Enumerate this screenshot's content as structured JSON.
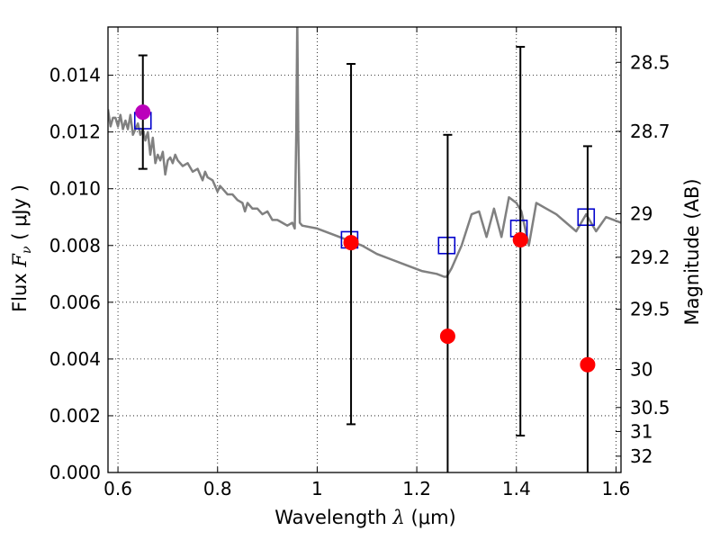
{
  "chart_data": {
    "type": "scatter",
    "xlabel": "Wavelength",
    "xlabel_symbol": "λ",
    "xlabel_unit": "(μm)",
    "ylabel": "Flux",
    "ylabel_symbol": "F",
    "ylabel_subscript": "ν",
    "ylabel_unit": "( μJy )",
    "y2label": "Magnitude (AB)",
    "xlim": [
      0.58,
      1.61
    ],
    "ylim": [
      0.0,
      0.0157
    ],
    "grid": true,
    "xticks": [
      0.6,
      0.8,
      1.0,
      1.2,
      1.4,
      1.6
    ],
    "xtick_labels": [
      "0.6",
      "0.8",
      "1",
      "1.2",
      "1.4",
      "1.6"
    ],
    "yticks": [
      0.0,
      0.002,
      0.004,
      0.006,
      0.008,
      0.01,
      0.012,
      0.014
    ],
    "ytick_labels": [
      "0.000",
      "0.002",
      "0.004",
      "0.006",
      "0.008",
      "0.010",
      "0.012",
      "0.014"
    ],
    "y2ticks": [
      {
        "mag": 28.5,
        "label": "28.5"
      },
      {
        "mag": 28.7,
        "label": "28.7"
      },
      {
        "mag": 29.0,
        "label": "29"
      },
      {
        "mag": 29.2,
        "label": "29.2"
      },
      {
        "mag": 29.5,
        "label": "29.5"
      },
      {
        "mag": 30.0,
        "label": "30"
      },
      {
        "mag": 30.5,
        "label": "30.5"
      },
      {
        "mag": 31.0,
        "label": "31"
      },
      {
        "mag": 32.0,
        "label": "32"
      }
    ],
    "series": [
      {
        "name": "model spectrum",
        "kind": "line",
        "color": "#808080",
        "x": [
          0.58,
          0.585,
          0.59,
          0.595,
          0.6,
          0.605,
          0.61,
          0.615,
          0.62,
          0.625,
          0.63,
          0.64,
          0.645,
          0.65,
          0.655,
          0.66,
          0.665,
          0.67,
          0.675,
          0.68,
          0.685,
          0.69,
          0.695,
          0.7,
          0.705,
          0.71,
          0.715,
          0.72,
          0.73,
          0.74,
          0.75,
          0.76,
          0.77,
          0.775,
          0.78,
          0.79,
          0.8,
          0.805,
          0.81,
          0.82,
          0.83,
          0.84,
          0.85,
          0.855,
          0.86,
          0.87,
          0.88,
          0.89,
          0.9,
          0.91,
          0.92,
          0.93,
          0.94,
          0.95,
          0.955,
          0.958,
          0.96,
          0.962,
          0.965,
          0.97,
          1.0,
          1.03,
          1.06,
          1.09,
          1.12,
          1.15,
          1.18,
          1.21,
          1.24,
          1.255,
          1.26,
          1.27,
          1.29,
          1.31,
          1.325,
          1.34,
          1.355,
          1.37,
          1.385,
          1.4,
          1.41,
          1.425,
          1.44,
          1.46,
          1.48,
          1.5,
          1.52,
          1.54,
          1.56,
          1.58,
          1.61
        ],
        "y": [
          0.0128,
          0.0122,
          0.0125,
          0.0125,
          0.0122,
          0.0126,
          0.0121,
          0.0124,
          0.0121,
          0.0126,
          0.0119,
          0.0123,
          0.0119,
          0.0121,
          0.0117,
          0.012,
          0.0112,
          0.0118,
          0.0109,
          0.0112,
          0.011,
          0.0113,
          0.0105,
          0.011,
          0.0111,
          0.0109,
          0.0112,
          0.011,
          0.0108,
          0.0109,
          0.0106,
          0.0107,
          0.0103,
          0.0106,
          0.0104,
          0.0103,
          0.0099,
          0.0101,
          0.01,
          0.0098,
          0.0098,
          0.0096,
          0.0095,
          0.0092,
          0.0095,
          0.0093,
          0.0093,
          0.0091,
          0.0092,
          0.0089,
          0.0089,
          0.0088,
          0.0087,
          0.0088,
          0.0086,
          0.012,
          0.016,
          0.012,
          0.0088,
          0.0087,
          0.0086,
          0.0084,
          0.0082,
          0.008,
          0.0077,
          0.0075,
          0.0073,
          0.0071,
          0.007,
          0.0069,
          0.0069,
          0.0072,
          0.008,
          0.0091,
          0.0092,
          0.0083,
          0.0093,
          0.0083,
          0.0097,
          0.0095,
          0.0092,
          0.008,
          0.0095,
          0.0093,
          0.0091,
          0.0088,
          0.0085,
          0.0091,
          0.0085,
          0.009,
          0.0088
        ]
      },
      {
        "name": "model bandpass flux",
        "kind": "markers",
        "marker": "open-square",
        "color": "#0000cc",
        "x": [
          0.65,
          1.065,
          1.26,
          1.405,
          1.54
        ],
        "y": [
          0.0124,
          0.0082,
          0.008,
          0.0086,
          0.009
        ]
      },
      {
        "name": "observed flux (red)",
        "kind": "errorbar",
        "marker": "filled-circle",
        "color": "#ff0000",
        "x": [
          1.068,
          1.262,
          1.408,
          1.543
        ],
        "y": [
          0.0081,
          0.0048,
          0.0082,
          0.0038
        ],
        "yerr_low": [
          0.0017,
          0.0,
          0.0013,
          0.0
        ],
        "yerr_high": [
          0.0144,
          0.0119,
          0.015,
          0.0115
        ]
      },
      {
        "name": "observed flux (magenta)",
        "kind": "errorbar",
        "marker": "filled-circle",
        "color": "#bb00bb",
        "x": [
          0.65
        ],
        "y": [
          0.0127
        ],
        "yerr_low": [
          0.0107
        ],
        "yerr_high": [
          0.0147
        ]
      }
    ]
  }
}
